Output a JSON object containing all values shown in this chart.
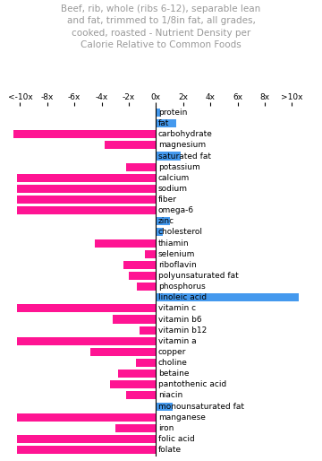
{
  "title": "Beef, rib, whole (ribs 6-12), separable lean\nand fat, trimmed to 1/8in fat, all grades,\ncooked, roasted - Nutrient Density per\nCalorie Relative to Common Foods",
  "nutrients": [
    "protein",
    "fat",
    "carbohydrate",
    "magnesium",
    "saturated fat",
    "potassium",
    "calcium",
    "sodium",
    "fiber",
    "omega-6",
    "zinc",
    "cholesterol",
    "thiamin",
    "selenium",
    "riboflavin",
    "polyunsaturated fat",
    "phosphorus",
    "linoleic acid",
    "vitamin c",
    "vitamin b6",
    "vitamin b12",
    "vitamin a",
    "copper",
    "choline",
    "betaine",
    "pantothenic acid",
    "niacin",
    "monounsaturated fat",
    "manganese",
    "iron",
    "folic acid",
    "folate"
  ],
  "values": [
    0.3,
    1.5,
    -10.5,
    -3.8,
    1.8,
    -2.2,
    -10.2,
    -10.2,
    -10.2,
    -10.2,
    1.0,
    0.5,
    -4.5,
    -0.8,
    -2.4,
    -2.0,
    -1.4,
    10.5,
    -10.2,
    -3.2,
    -1.2,
    -10.2,
    -4.8,
    -1.5,
    -2.8,
    -3.4,
    -2.2,
    1.2,
    -10.2,
    -3.0,
    -10.2,
    -10.2
  ],
  "highlight_nutrients": [
    "protein",
    "fat",
    "saturated fat",
    "zinc",
    "cholesterol",
    "linoleic acid",
    "monounsaturated fat"
  ],
  "bar_color_pink": "#FF1493",
  "bar_color_blue": "#4499EE",
  "axis_tick_positions": [
    -10,
    -8,
    -6,
    -4,
    -2,
    0,
    2,
    4,
    6,
    8,
    10
  ],
  "axis_tick_labels": [
    "<-10x",
    "-8x",
    "-6x",
    "-4x",
    "-2x",
    "0x",
    "2x",
    "4x",
    "6x",
    "8x",
    ">10x"
  ],
  "xlim": [
    -11.0,
    11.5
  ],
  "title_color": "#999999",
  "title_fontsize": 7.5,
  "label_fontsize": 6.5,
  "tick_fontsize": 6.5
}
